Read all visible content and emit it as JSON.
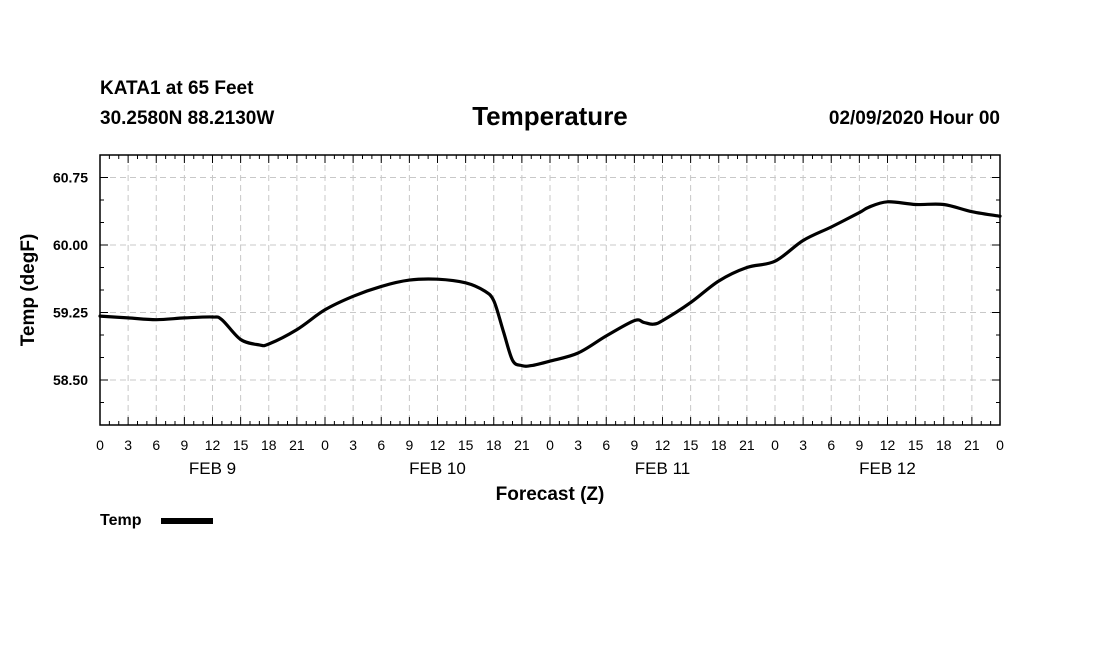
{
  "header": {
    "station": "KATA1 at 65 Feet",
    "location": "30.2580N 88.2130W",
    "title": "Temperature",
    "datetime": "02/09/2020 Hour 00"
  },
  "colors": {
    "line": "#000000",
    "grid": "#c8c8c8",
    "axis": "#000000"
  },
  "chart_data": {
    "type": "line",
    "title": "Temperature",
    "xlabel": "Forecast (Z)",
    "ylabel": "Temp (degF)",
    "ylim": [
      58.0,
      61.0
    ],
    "xlim": [
      0,
      96
    ],
    "yticks": [
      58.5,
      59.25,
      60.0,
      60.75
    ],
    "ytick_labels": [
      "58.50",
      "59.25",
      "60.00",
      "60.75"
    ],
    "xticks": [
      0,
      3,
      6,
      9,
      12,
      15,
      18,
      21,
      24,
      27,
      30,
      33,
      36,
      39,
      42,
      45,
      48,
      51,
      54,
      57,
      60,
      63,
      66,
      69,
      72,
      75,
      78,
      81,
      84,
      87,
      90,
      93,
      96
    ],
    "xtick_labels": [
      "0",
      "3",
      "6",
      "9",
      "12",
      "15",
      "18",
      "21",
      "0",
      "3",
      "6",
      "9",
      "12",
      "15",
      "18",
      "21",
      "0",
      "3",
      "6",
      "9",
      "12",
      "15",
      "18",
      "21",
      "0",
      "3",
      "6",
      "9",
      "12",
      "15",
      "18",
      "21",
      "0"
    ],
    "day_labels": [
      {
        "label": "FEB 9",
        "hour": 12
      },
      {
        "label": "FEB 10",
        "hour": 36
      },
      {
        "label": "FEB 11",
        "hour": 60
      },
      {
        "label": "FEB 12",
        "hour": 84
      }
    ],
    "grid": true,
    "legend": {
      "position": "bottom-left",
      "label": "Temp"
    },
    "series": [
      {
        "name": "Temp",
        "x": [
          0,
          3,
          6,
          9,
          12,
          13,
          15,
          17,
          18,
          21,
          24,
          27,
          30,
          33,
          36,
          39,
          41,
          42,
          43,
          44,
          45,
          46,
          48,
          51,
          54,
          57,
          58,
          59,
          60,
          63,
          66,
          69,
          72,
          75,
          78,
          81,
          82,
          84,
          87,
          90,
          93,
          96
        ],
        "y": [
          59.21,
          59.19,
          59.17,
          59.19,
          59.2,
          59.17,
          58.95,
          58.89,
          58.9,
          59.06,
          59.28,
          59.43,
          59.54,
          59.61,
          59.62,
          59.58,
          59.49,
          59.38,
          59.05,
          58.72,
          58.66,
          58.66,
          58.71,
          58.8,
          58.99,
          59.16,
          59.14,
          59.12,
          59.16,
          59.36,
          59.6,
          59.75,
          59.82,
          60.05,
          60.2,
          60.36,
          60.42,
          60.48,
          60.45,
          60.45,
          60.37,
          60.32
        ]
      }
    ]
  }
}
